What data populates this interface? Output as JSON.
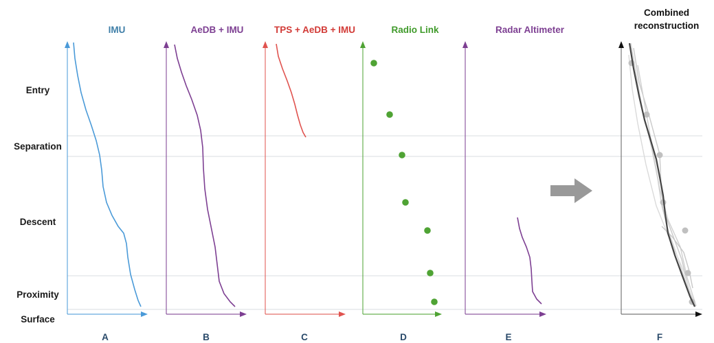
{
  "phases": [
    {
      "key": "entry",
      "label": "Entry"
    },
    {
      "key": "separation",
      "label": "Separation"
    },
    {
      "key": "descent",
      "label": "Descent"
    },
    {
      "key": "proximity",
      "label": "Proximity"
    },
    {
      "key": "surface",
      "label": "Surface"
    }
  ],
  "panels": [
    {
      "key": "imu",
      "title": "IMU",
      "letter": "A",
      "color": "#4a9ad8",
      "title_color": "#3f7fa8"
    },
    {
      "key": "aedb",
      "title": "AeDB + IMU",
      "letter": "B",
      "color": "#7d3f92",
      "title_color": "#7d3f92"
    },
    {
      "key": "tps",
      "title": "TPS + AeDB + IMU",
      "letter": "C",
      "color": "#e0534f",
      "title_color": "#d23a36"
    },
    {
      "key": "radio",
      "title": "Radio Link",
      "letter": "D",
      "color": "#4fa334",
      "title_color": "#3f9a2a"
    },
    {
      "key": "radar",
      "title": "Radar Altimeter",
      "letter": "E",
      "color": "#7d3f92",
      "title_color": "#7d3f92"
    },
    {
      "key": "combined",
      "title": "Combined reconstruction",
      "title_lines": [
        "Combined",
        "reconstruction"
      ],
      "letter": "F",
      "color": "#333333",
      "title_color": "#111111"
    }
  ],
  "arrow": {
    "name": "flow-arrow",
    "color": "#999999"
  }
}
